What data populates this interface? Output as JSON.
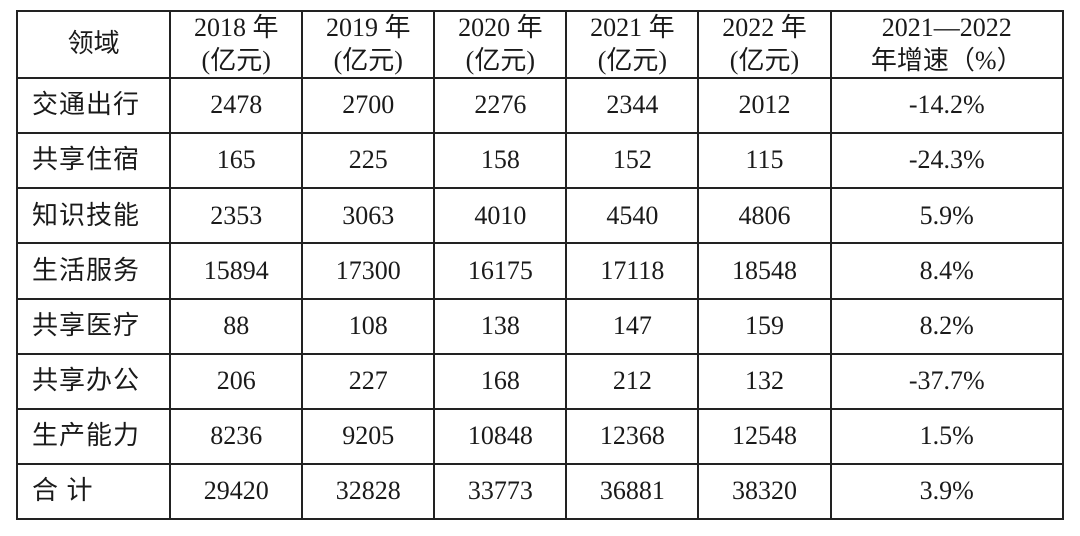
{
  "table": {
    "type": "table",
    "border_color": "#222222",
    "background_color": "#ffffff",
    "text_color": "#1a1a1a",
    "font_size_pt": 20,
    "columns": [
      {
        "key": "field",
        "header_line1": "领域",
        "header_line2": "",
        "width_pct": 14.5,
        "align": "left"
      },
      {
        "key": "y2018",
        "header_line1": "2018 年",
        "header_line2": "(亿元)",
        "width_pct": 12.5,
        "align": "center"
      },
      {
        "key": "y2019",
        "header_line1": "2019 年",
        "header_line2": "(亿元)",
        "width_pct": 12.5,
        "align": "center"
      },
      {
        "key": "y2020",
        "header_line1": "2020 年",
        "header_line2": "(亿元)",
        "width_pct": 12.5,
        "align": "center"
      },
      {
        "key": "y2021",
        "header_line1": "2021 年",
        "header_line2": "(亿元)",
        "width_pct": 12.5,
        "align": "center"
      },
      {
        "key": "y2022",
        "header_line1": "2022 年",
        "header_line2": "(亿元)",
        "width_pct": 12.5,
        "align": "center"
      },
      {
        "key": "rate",
        "header_line1": "2021—2022",
        "header_line2": "年增速（%）",
        "width_pct": 22.0,
        "align": "center"
      }
    ],
    "rows": [
      {
        "field": "交通出行",
        "y2018": "2478",
        "y2019": "2700",
        "y2020": "2276",
        "y2021": "2344",
        "y2022": "2012",
        "rate": "-14.2%"
      },
      {
        "field": "共享住宿",
        "y2018": "165",
        "y2019": "225",
        "y2020": "158",
        "y2021": "152",
        "y2022": "115",
        "rate": "-24.3%"
      },
      {
        "field": "知识技能",
        "y2018": "2353",
        "y2019": "3063",
        "y2020": "4010",
        "y2021": "4540",
        "y2022": "4806",
        "rate": "5.9%"
      },
      {
        "field": "生活服务",
        "y2018": "15894",
        "y2019": "17300",
        "y2020": "16175",
        "y2021": "17118",
        "y2022": "18548",
        "rate": "8.4%"
      },
      {
        "field": "共享医疗",
        "y2018": "88",
        "y2019": "108",
        "y2020": "138",
        "y2021": "147",
        "y2022": "159",
        "rate": "8.2%"
      },
      {
        "field": "共享办公",
        "y2018": "206",
        "y2019": "227",
        "y2020": "168",
        "y2021": "212",
        "y2022": "132",
        "rate": "-37.7%"
      },
      {
        "field": "生产能力",
        "y2018": "8236",
        "y2019": "9205",
        "y2020": "10848",
        "y2021": "12368",
        "y2022": "12548",
        "rate": "1.5%"
      },
      {
        "field": "合 计",
        "y2018": "29420",
        "y2019": "32828",
        "y2020": "33773",
        "y2021": "36881",
        "y2022": "38320",
        "rate": "3.9%",
        "is_total": true
      }
    ]
  }
}
